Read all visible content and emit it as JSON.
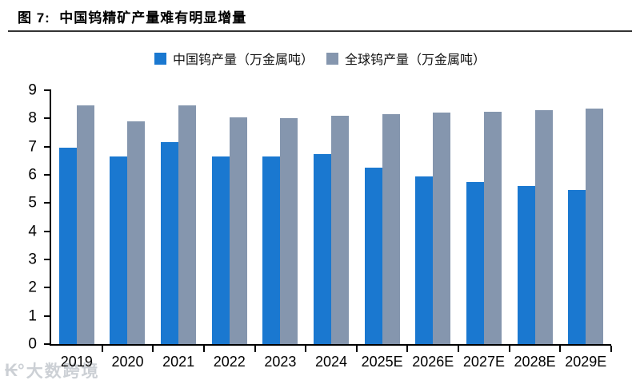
{
  "header": {
    "title": "图 7:  中国钨精矿产量难有明显增量"
  },
  "watermark": {
    "logo": "₭°",
    "text": "大数跨境"
  },
  "colors": {
    "china_bar": "#1A78D0",
    "global_bar": "#8596AE",
    "axis": "#000000",
    "divider": "#333333"
  },
  "chart_data": {
    "type": "bar",
    "title": "中国钨精矿产量难有明显增量",
    "categories": [
      "2019",
      "2020",
      "2021",
      "2022",
      "2023",
      "2024",
      "2025E",
      "2026E",
      "2027E",
      "2028E",
      "2029E"
    ],
    "series": [
      {
        "name": "中国钨产量（万金属吨）",
        "color": "#1A78D0",
        "values": [
          6.95,
          6.65,
          7.15,
          6.65,
          6.65,
          6.75,
          6.25,
          5.95,
          5.75,
          5.6,
          5.45
        ]
      },
      {
        "name": "全球钨产量（万金属吨）",
        "color": "#8596AE",
        "values": [
          8.45,
          7.9,
          8.45,
          8.05,
          8.0,
          8.1,
          8.15,
          8.2,
          8.25,
          8.3,
          8.35
        ]
      }
    ],
    "xlabel": "",
    "ylabel": "",
    "ylim": [
      0,
      9
    ],
    "yticks": [
      0,
      1,
      2,
      3,
      4,
      5,
      6,
      7,
      8,
      9
    ],
    "grid": false,
    "legend_position": "top-center"
  }
}
